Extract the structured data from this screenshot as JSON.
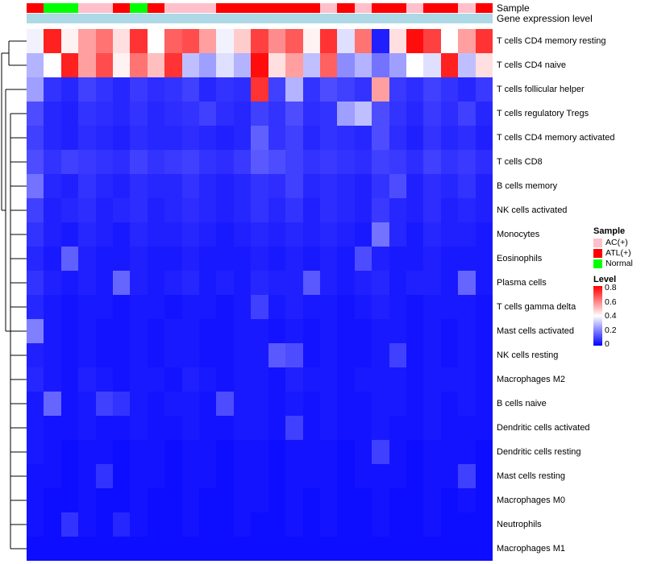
{
  "annotations": {
    "sample_label": "Sample",
    "gene_label": "Gene expression level",
    "gene_color": "#ADD8E6",
    "sample_values": [
      "ATL(+)",
      "Normal",
      "Normal",
      "AC(+)",
      "AC(+)",
      "ATL(+)",
      "Normal",
      "ATL(+)",
      "AC(+)",
      "AC(+)",
      "AC(+)",
      "ATL(+)",
      "ATL(+)",
      "ATL(+)",
      "ATL(+)",
      "ATL(+)",
      "ATL(+)",
      "AC(+)",
      "ATL(+)",
      "AC(+)",
      "ATL(+)",
      "ATL(+)",
      "AC(+)",
      "ATL(+)",
      "ATL(+)",
      "AC(+)",
      "ATL(+)"
    ]
  },
  "legend": {
    "sample_title": "Sample",
    "sample_items": [
      {
        "label": "AC(+)",
        "color": "#FFC0CB"
      },
      {
        "label": "ATL(+)",
        "color": "#FF0000"
      },
      {
        "label": "Normal",
        "color": "#00FF00"
      }
    ],
    "level_title": "Level",
    "level_ticks": [
      "0.8",
      "0.6",
      "0.4",
      "0.2",
      "0"
    ],
    "level_colors": {
      "high": "#FF0000",
      "mid": "#FFFFFF",
      "low": "#0000FF"
    }
  },
  "chart_data": {
    "type": "heatmap",
    "title": "",
    "value_range": [
      0,
      0.8
    ],
    "colormap": "blue-white-red",
    "columns_count": 27,
    "rows": [
      "T cells CD4 memory resting",
      "T cells CD4 naive",
      "T cells follicular helper",
      "T cells regulatory Tregs",
      "T cells CD4 memory activated",
      "T cells CD8",
      "B cells memory",
      "NK cells activated",
      "Monocytes",
      "Eosinophils",
      "Plasma cells",
      "T cells gamma delta",
      "Mast cells activated",
      "NK cells resting",
      "Macrophages M2",
      "B cells naive",
      "Dendritic cells activated",
      "Dendritic cells resting",
      "Mast cells resting",
      "Macrophages M0",
      "Neutrophils",
      "Macrophages M1"
    ],
    "values": [
      [
        0.38,
        0.75,
        0.42,
        0.55,
        0.62,
        0.45,
        0.72,
        0.4,
        0.65,
        0.68,
        0.55,
        0.38,
        0.48,
        0.7,
        0.58,
        0.66,
        0.42,
        0.72,
        0.35,
        0.62,
        0.05,
        0.45,
        0.78,
        0.7,
        0.4,
        0.55,
        0.72
      ],
      [
        0.28,
        0.4,
        0.75,
        0.55,
        0.68,
        0.42,
        0.62,
        0.5,
        0.72,
        0.3,
        0.25,
        0.35,
        0.28,
        0.78,
        0.45,
        0.55,
        0.3,
        0.65,
        0.22,
        0.28,
        0.18,
        0.25,
        0.4,
        0.35,
        0.75,
        0.3,
        0.45
      ],
      [
        0.25,
        0.08,
        0.06,
        0.1,
        0.08,
        0.06,
        0.09,
        0.07,
        0.08,
        0.1,
        0.06,
        0.08,
        0.07,
        0.72,
        0.1,
        0.28,
        0.08,
        0.12,
        0.1,
        0.08,
        0.55,
        0.09,
        0.07,
        0.1,
        0.08,
        0.06,
        0.09
      ],
      [
        0.12,
        0.06,
        0.05,
        0.08,
        0.07,
        0.06,
        0.08,
        0.06,
        0.07,
        0.08,
        0.1,
        0.07,
        0.06,
        0.1,
        0.08,
        0.12,
        0.07,
        0.08,
        0.25,
        0.3,
        0.12,
        0.08,
        0.06,
        0.09,
        0.07,
        0.1,
        0.06
      ],
      [
        0.1,
        0.06,
        0.05,
        0.07,
        0.06,
        0.05,
        0.07,
        0.06,
        0.06,
        0.07,
        0.06,
        0.05,
        0.06,
        0.15,
        0.08,
        0.1,
        0.06,
        0.08,
        0.07,
        0.06,
        0.12,
        0.07,
        0.05,
        0.08,
        0.06,
        0.07,
        0.05
      ],
      [
        0.12,
        0.08,
        0.1,
        0.09,
        0.08,
        0.07,
        0.1,
        0.08,
        0.09,
        0.1,
        0.08,
        0.07,
        0.09,
        0.14,
        0.12,
        0.1,
        0.08,
        0.09,
        0.08,
        0.07,
        0.1,
        0.09,
        0.07,
        0.1,
        0.08,
        0.09,
        0.07
      ],
      [
        0.18,
        0.06,
        0.05,
        0.08,
        0.06,
        0.05,
        0.07,
        0.06,
        0.06,
        0.08,
        0.06,
        0.05,
        0.06,
        0.08,
        0.07,
        0.1,
        0.06,
        0.07,
        0.06,
        0.05,
        0.08,
        0.12,
        0.05,
        0.07,
        0.06,
        0.08,
        0.05
      ],
      [
        0.1,
        0.05,
        0.06,
        0.07,
        0.05,
        0.06,
        0.07,
        0.05,
        0.06,
        0.07,
        0.06,
        0.05,
        0.06,
        0.08,
        0.06,
        0.08,
        0.05,
        0.07,
        0.06,
        0.05,
        0.09,
        0.06,
        0.05,
        0.07,
        0.05,
        0.06,
        0.05
      ],
      [
        0.08,
        0.05,
        0.04,
        0.06,
        0.05,
        0.04,
        0.06,
        0.05,
        0.05,
        0.06,
        0.05,
        0.04,
        0.05,
        0.06,
        0.05,
        0.06,
        0.05,
        0.06,
        0.05,
        0.04,
        0.18,
        0.06,
        0.04,
        0.06,
        0.05,
        0.05,
        0.04
      ],
      [
        0.06,
        0.04,
        0.15,
        0.05,
        0.04,
        0.04,
        0.05,
        0.04,
        0.04,
        0.05,
        0.04,
        0.04,
        0.04,
        0.05,
        0.04,
        0.05,
        0.04,
        0.05,
        0.04,
        0.12,
        0.05,
        0.04,
        0.04,
        0.05,
        0.04,
        0.04,
        0.04
      ],
      [
        0.08,
        0.05,
        0.04,
        0.05,
        0.04,
        0.16,
        0.05,
        0.04,
        0.05,
        0.06,
        0.04,
        0.05,
        0.04,
        0.06,
        0.05,
        0.05,
        0.14,
        0.05,
        0.04,
        0.05,
        0.06,
        0.04,
        0.05,
        0.05,
        0.04,
        0.16,
        0.04
      ],
      [
        0.06,
        0.04,
        0.03,
        0.04,
        0.04,
        0.03,
        0.04,
        0.04,
        0.03,
        0.04,
        0.04,
        0.03,
        0.04,
        0.1,
        0.04,
        0.05,
        0.04,
        0.04,
        0.03,
        0.04,
        0.05,
        0.04,
        0.03,
        0.04,
        0.04,
        0.04,
        0.03
      ],
      [
        0.2,
        0.04,
        0.03,
        0.04,
        0.03,
        0.03,
        0.04,
        0.03,
        0.04,
        0.04,
        0.03,
        0.03,
        0.04,
        0.04,
        0.03,
        0.04,
        0.03,
        0.04,
        0.03,
        0.03,
        0.04,
        0.04,
        0.03,
        0.04,
        0.03,
        0.04,
        0.03
      ],
      [
        0.05,
        0.04,
        0.03,
        0.04,
        0.03,
        0.03,
        0.04,
        0.03,
        0.04,
        0.04,
        0.03,
        0.03,
        0.04,
        0.04,
        0.14,
        0.12,
        0.03,
        0.04,
        0.03,
        0.03,
        0.04,
        0.1,
        0.03,
        0.04,
        0.03,
        0.04,
        0.03
      ],
      [
        0.06,
        0.04,
        0.03,
        0.05,
        0.04,
        0.03,
        0.04,
        0.04,
        0.03,
        0.05,
        0.04,
        0.03,
        0.04,
        0.04,
        0.03,
        0.05,
        0.04,
        0.04,
        0.03,
        0.04,
        0.04,
        0.04,
        0.03,
        0.04,
        0.04,
        0.04,
        0.03
      ],
      [
        0.04,
        0.16,
        0.03,
        0.04,
        0.1,
        0.08,
        0.04,
        0.03,
        0.04,
        0.04,
        0.03,
        0.12,
        0.04,
        0.04,
        0.03,
        0.04,
        0.03,
        0.04,
        0.03,
        0.03,
        0.04,
        0.04,
        0.03,
        0.04,
        0.03,
        0.04,
        0.03
      ],
      [
        0.04,
        0.03,
        0.03,
        0.04,
        0.03,
        0.03,
        0.04,
        0.03,
        0.03,
        0.04,
        0.03,
        0.03,
        0.04,
        0.04,
        0.03,
        0.1,
        0.03,
        0.04,
        0.03,
        0.03,
        0.04,
        0.03,
        0.03,
        0.04,
        0.03,
        0.03,
        0.03
      ],
      [
        0.04,
        0.03,
        0.02,
        0.03,
        0.03,
        0.02,
        0.03,
        0.03,
        0.02,
        0.03,
        0.03,
        0.02,
        0.03,
        0.03,
        0.02,
        0.03,
        0.03,
        0.03,
        0.02,
        0.03,
        0.1,
        0.03,
        0.02,
        0.03,
        0.03,
        0.03,
        0.02
      ],
      [
        0.03,
        0.03,
        0.02,
        0.03,
        0.08,
        0.02,
        0.03,
        0.03,
        0.02,
        0.03,
        0.03,
        0.02,
        0.03,
        0.03,
        0.02,
        0.03,
        0.03,
        0.03,
        0.02,
        0.03,
        0.03,
        0.03,
        0.02,
        0.03,
        0.03,
        0.1,
        0.02
      ],
      [
        0.03,
        0.02,
        0.02,
        0.03,
        0.02,
        0.02,
        0.03,
        0.02,
        0.02,
        0.03,
        0.02,
        0.02,
        0.03,
        0.03,
        0.02,
        0.03,
        0.02,
        0.03,
        0.02,
        0.02,
        0.03,
        0.02,
        0.02,
        0.03,
        0.02,
        0.03,
        0.02
      ],
      [
        0.03,
        0.02,
        0.08,
        0.03,
        0.02,
        0.06,
        0.03,
        0.02,
        0.02,
        0.03,
        0.02,
        0.02,
        0.03,
        0.02,
        0.02,
        0.03,
        0.02,
        0.03,
        0.02,
        0.02,
        0.03,
        0.02,
        0.02,
        0.03,
        0.02,
        0.02,
        0.02
      ],
      [
        0.02,
        0.02,
        0.02,
        0.02,
        0.02,
        0.02,
        0.02,
        0.02,
        0.02,
        0.02,
        0.02,
        0.02,
        0.02,
        0.02,
        0.02,
        0.02,
        0.02,
        0.02,
        0.02,
        0.02,
        0.02,
        0.02,
        0.02,
        0.02,
        0.02,
        0.02,
        0.02
      ]
    ]
  }
}
